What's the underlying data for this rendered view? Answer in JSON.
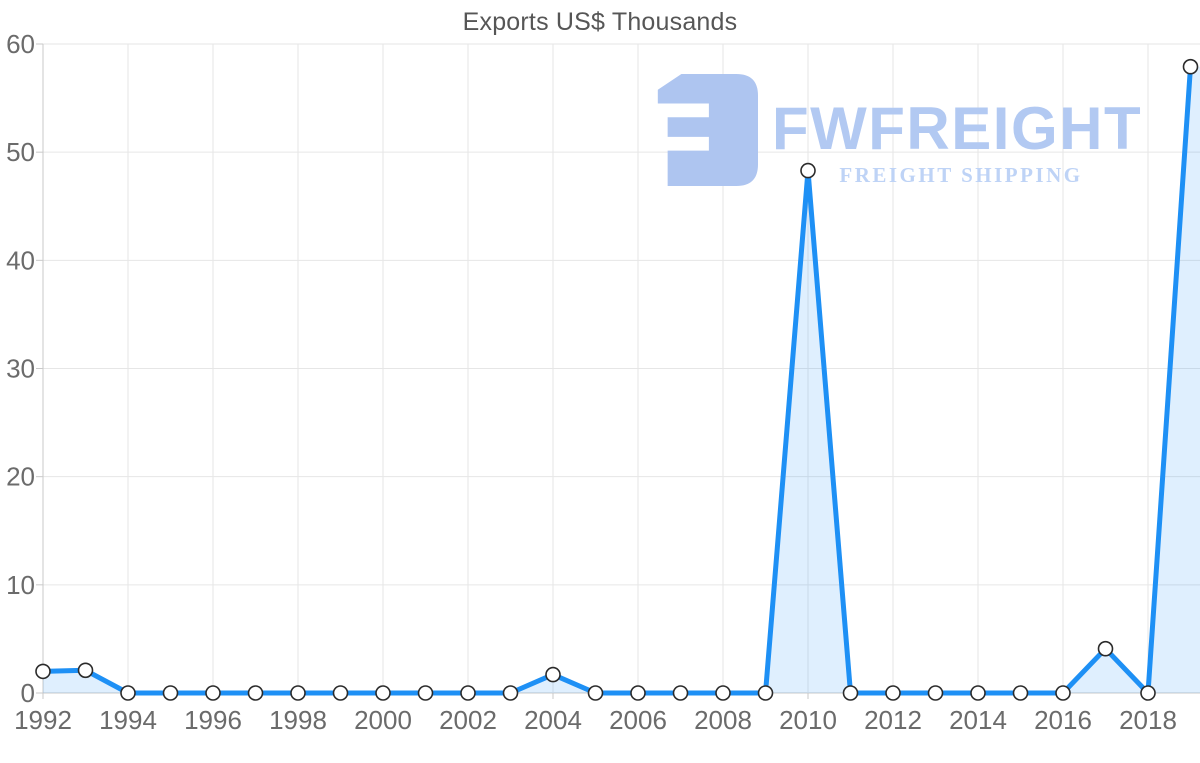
{
  "chart": {
    "title": "Exports US$ Thousands"
  },
  "logo": {
    "name": "FWFREIGHT",
    "subtitle": "FREIGHT SHIPPING"
  },
  "chart_data": {
    "type": "area",
    "title": "Exports US$ Thousands",
    "x": [
      1992,
      1993,
      1994,
      1995,
      1996,
      1997,
      1998,
      1999,
      2000,
      2001,
      2002,
      2003,
      2004,
      2005,
      2006,
      2007,
      2008,
      2009,
      2010,
      2011,
      2012,
      2013,
      2014,
      2015,
      2016,
      2017,
      2018,
      2019
    ],
    "values": [
      2,
      2.1,
      0,
      0,
      0,
      0,
      0,
      0,
      0,
      0,
      0,
      0,
      1.7,
      0,
      0,
      0,
      0,
      0,
      48.3,
      0,
      0,
      0,
      0,
      0,
      0,
      4.1,
      0,
      57.9
    ],
    "series_name": "Exports",
    "xlabel": "",
    "ylabel": "",
    "xlim": [
      1992,
      2019
    ],
    "ylim": [
      0,
      60
    ],
    "x_tick_labels": [
      "1992",
      "1994",
      "1996",
      "1998",
      "2000",
      "2002",
      "2004",
      "2006",
      "2008",
      "2010",
      "2012",
      "2014",
      "2016",
      "2018"
    ],
    "x_tick_years": [
      1992,
      1994,
      1996,
      1998,
      2000,
      2002,
      2004,
      2006,
      2008,
      2010,
      2012,
      2014,
      2016,
      2018
    ],
    "y_tick_labels": [
      "0",
      "10",
      "20",
      "30",
      "40",
      "50",
      "60"
    ],
    "y_tick_values": [
      0,
      10,
      20,
      30,
      40,
      50,
      60
    ],
    "grid": true,
    "legend": false,
    "colors": {
      "line": "#1e90f5",
      "area_fill": "rgba(30,144,245,0.14)",
      "marker_fill": "#ffffff",
      "marker_stroke": "#2b2b2b",
      "gridline": "#e6e6e6",
      "axis_line": "#c9c9c9",
      "tick_label": "#6b6b6b",
      "title": "#565656",
      "logo_blue": "#aec5f0"
    }
  }
}
